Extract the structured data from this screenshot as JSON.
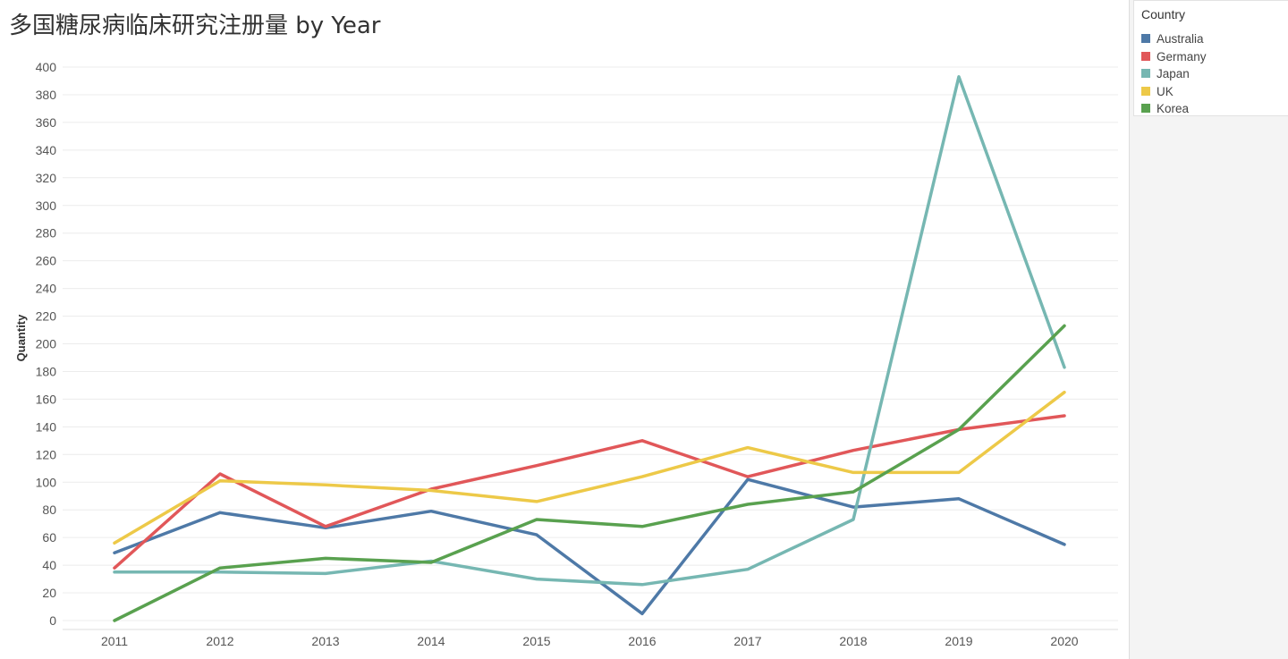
{
  "chart_data": {
    "type": "line",
    "title": "多国糖尿病临床研究注册量 by Year",
    "xlabel": "",
    "ylabel": "Quantity",
    "categories": [
      "2011",
      "2012",
      "2013",
      "2014",
      "2015",
      "2016",
      "2017",
      "2018",
      "2019",
      "2020"
    ],
    "ylim": [
      0,
      400
    ],
    "yticks": [
      0,
      20,
      40,
      60,
      80,
      100,
      120,
      140,
      160,
      180,
      200,
      220,
      240,
      260,
      280,
      300,
      320,
      340,
      360,
      380,
      400
    ],
    "grid": true,
    "legend_title": "Country",
    "legend_position": "top-right",
    "series": [
      {
        "name": "Australia",
        "color": "#4e79a7",
        "values": [
          49,
          78,
          67,
          79,
          62,
          5,
          102,
          82,
          88,
          55
        ]
      },
      {
        "name": "Germany",
        "color": "#e15759",
        "values": [
          38,
          106,
          68,
          95,
          112,
          130,
          104,
          123,
          138,
          148
        ]
      },
      {
        "name": "Japan",
        "color": "#76b7b2",
        "values": [
          35,
          35,
          34,
          43,
          30,
          26,
          37,
          73,
          393,
          183
        ]
      },
      {
        "name": "UK",
        "color": "#edc948",
        "values": [
          56,
          101,
          98,
          94,
          86,
          104,
          125,
          107,
          107,
          165
        ]
      },
      {
        "name": "Korea",
        "color": "#59a14f",
        "values": [
          0,
          38,
          45,
          42,
          73,
          68,
          84,
          93,
          138,
          213
        ]
      }
    ]
  }
}
